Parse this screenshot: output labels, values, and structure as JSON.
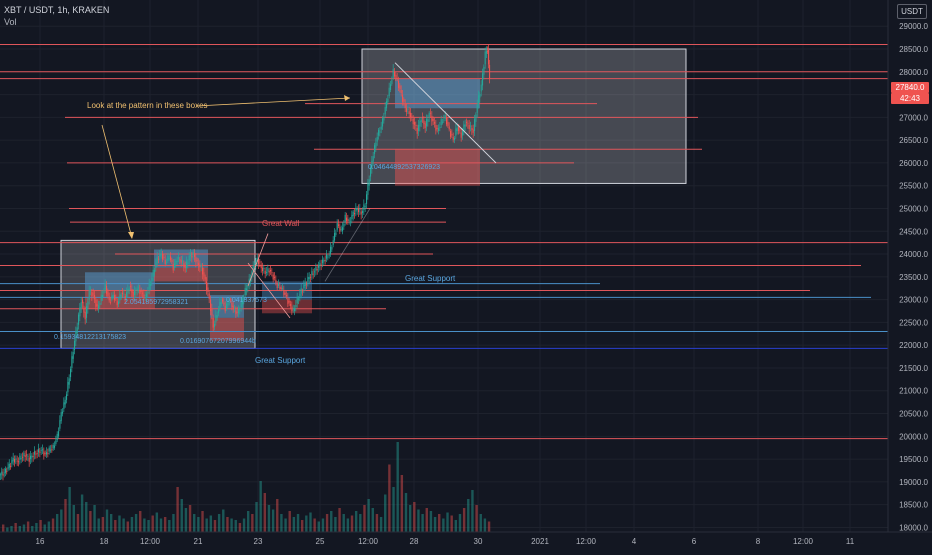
{
  "header": {
    "symbol": "XBT / USDT, 1h, KRAKEN",
    "volume_label": "Vol"
  },
  "currency_badge": "USDT",
  "price_tags": {
    "last_price": "27840.0",
    "countdown": "42:43"
  },
  "colors": {
    "background": "#131722",
    "bull": "#26a69a",
    "bear": "#ef5350",
    "hline_red": "#e0565b",
    "hline_blue": "#4a90c8",
    "box_fill": "#ffffff",
    "annotation_text": "#f0c070",
    "label_blue": "#5aa7e0",
    "label_red": "#e0565b"
  },
  "chart_data": {
    "type": "candlestick",
    "y_axis": {
      "ticks": [
        "29000.0",
        "28500.0",
        "28000.0",
        "27500.0",
        "27000.0",
        "26500.0",
        "26000.0",
        "25500.0",
        "25000.0",
        "24500.0",
        "24000.0",
        "23500.0",
        "23000.0",
        "22500.0",
        "22000.0",
        "21500.0",
        "21000.0",
        "20500.0",
        "20000.0",
        "19500.0",
        "19000.0",
        "18500.0",
        "18000.0"
      ],
      "range": [
        17900,
        29400
      ]
    },
    "x_axis": {
      "ticks": [
        "16",
        "18",
        "12:00",
        "21",
        "23",
        "25",
        "12:00",
        "28",
        "30",
        "2021",
        "12:00",
        "4",
        "6",
        "8",
        "12:00",
        "11"
      ]
    },
    "price_path": [
      [
        0,
        19150
      ],
      [
        5,
        19200
      ],
      [
        10,
        19350
      ],
      [
        14,
        19500
      ],
      [
        18,
        19450
      ],
      [
        22,
        19550
      ],
      [
        26,
        19600
      ],
      [
        30,
        19500
      ],
      [
        34,
        19600
      ],
      [
        38,
        19650
      ],
      [
        42,
        19700
      ],
      [
        46,
        19600
      ],
      [
        50,
        19700
      ],
      [
        54,
        19750
      ],
      [
        58,
        20000
      ],
      [
        62,
        20500
      ],
      [
        66,
        20800
      ],
      [
        70,
        21300
      ],
      [
        74,
        21900
      ],
      [
        78,
        22450
      ],
      [
        82,
        23000
      ],
      [
        86,
        22600
      ],
      [
        90,
        23200
      ],
      [
        94,
        23100
      ],
      [
        98,
        22800
      ],
      [
        102,
        23050
      ],
      [
        106,
        23300
      ],
      [
        110,
        22950
      ],
      [
        114,
        23100
      ],
      [
        118,
        22900
      ],
      [
        122,
        23150
      ],
      [
        126,
        23050
      ],
      [
        130,
        23300
      ],
      [
        134,
        23100
      ],
      [
        138,
        23250
      ],
      [
        142,
        23150
      ],
      [
        146,
        23050
      ],
      [
        150,
        23300
      ],
      [
        154,
        23600
      ],
      [
        158,
        23900
      ],
      [
        162,
        24000
      ],
      [
        166,
        23800
      ],
      [
        170,
        23950
      ],
      [
        174,
        23700
      ],
      [
        178,
        23900
      ],
      [
        182,
        23850
      ],
      [
        186,
        23700
      ],
      [
        190,
        23950
      ],
      [
        194,
        24000
      ],
      [
        198,
        23800
      ],
      [
        202,
        23700
      ],
      [
        206,
        23400
      ],
      [
        210,
        23000
      ],
      [
        214,
        22400
      ],
      [
        218,
        22700
      ],
      [
        222,
        23000
      ],
      [
        226,
        22800
      ],
      [
        230,
        23000
      ],
      [
        234,
        22800
      ],
      [
        238,
        22700
      ],
      [
        242,
        22900
      ],
      [
        246,
        23200
      ],
      [
        250,
        23400
      ],
      [
        254,
        23700
      ],
      [
        258,
        23900
      ],
      [
        262,
        23700
      ],
      [
        266,
        23600
      ],
      [
        270,
        23650
      ],
      [
        274,
        23500
      ],
      [
        278,
        23300
      ],
      [
        282,
        23250
      ],
      [
        286,
        23100
      ],
      [
        290,
        22900
      ],
      [
        294,
        22750
      ],
      [
        298,
        23000
      ],
      [
        302,
        23200
      ],
      [
        306,
        23350
      ],
      [
        310,
        23500
      ],
      [
        314,
        23600
      ],
      [
        318,
        23700
      ],
      [
        322,
        23800
      ],
      [
        326,
        23900
      ],
      [
        330,
        24000
      ],
      [
        334,
        24300
      ],
      [
        338,
        24650
      ],
      [
        342,
        24500
      ],
      [
        346,
        24800
      ],
      [
        350,
        24700
      ],
      [
        354,
        24900
      ],
      [
        358,
        25000
      ],
      [
        362,
        24900
      ],
      [
        366,
        25100
      ],
      [
        370,
        25700
      ],
      [
        374,
        26200
      ],
      [
        378,
        26600
      ],
      [
        382,
        26800
      ],
      [
        386,
        27200
      ],
      [
        390,
        27600
      ],
      [
        394,
        28000
      ],
      [
        398,
        27800
      ],
      [
        402,
        27500
      ],
      [
        406,
        27200
      ],
      [
        410,
        27100
      ],
      [
        414,
        26900
      ],
      [
        418,
        26700
      ],
      [
        422,
        27000
      ],
      [
        426,
        26800
      ],
      [
        430,
        27100
      ],
      [
        434,
        26900
      ],
      [
        438,
        26700
      ],
      [
        442,
        26900
      ],
      [
        446,
        27000
      ],
      [
        450,
        26700
      ],
      [
        454,
        26500
      ],
      [
        458,
        26800
      ],
      [
        462,
        26600
      ],
      [
        466,
        26900
      ],
      [
        470,
        26800
      ],
      [
        474,
        26700
      ],
      [
        478,
        27300
      ],
      [
        482,
        27700
      ],
      [
        486,
        28400
      ],
      [
        488,
        28500
      ],
      [
        490,
        27800
      ]
    ],
    "horizontal_lines": [
      {
        "price": 28600,
        "x1": 0,
        "x2": 932,
        "color": "red"
      },
      {
        "price": 28000,
        "x1": 0,
        "x2": 932,
        "color": "red"
      },
      {
        "price": 27850,
        "x1": 0,
        "x2": 932,
        "color": "red"
      },
      {
        "price": 27300,
        "x1": 305,
        "x2": 597,
        "color": "red"
      },
      {
        "price": 27000,
        "x1": 65,
        "x2": 698,
        "color": "red"
      },
      {
        "price": 26300,
        "x1": 314,
        "x2": 702,
        "color": "red"
      },
      {
        "price": 26000,
        "x1": 67,
        "x2": 574,
        "color": "red"
      },
      {
        "price": 25000,
        "x1": 69,
        "x2": 446,
        "color": "red"
      },
      {
        "price": 24700,
        "x1": 70,
        "x2": 446,
        "color": "red"
      },
      {
        "price": 24250,
        "x1": 0,
        "x2": 932,
        "color": "red"
      },
      {
        "price": 24000,
        "x1": 115,
        "x2": 433,
        "color": "red"
      },
      {
        "price": 23750,
        "x1": 0,
        "x2": 861,
        "color": "red"
      },
      {
        "price": 23350,
        "x1": 0,
        "x2": 600,
        "color": "blue"
      },
      {
        "price": 23200,
        "x1": 0,
        "x2": 810,
        "color": "red"
      },
      {
        "price": 23050,
        "x1": 0,
        "x2": 871,
        "color": "blue"
      },
      {
        "price": 22800,
        "x1": 0,
        "x2": 386,
        "color": "red"
      },
      {
        "price": 22300,
        "x1": 0,
        "x2": 932,
        "color": "blue"
      },
      {
        "price": 21930,
        "x1": 0,
        "x2": 932,
        "color": "navy"
      },
      {
        "price": 19950,
        "x1": 0,
        "x2": 932,
        "color": "red"
      }
    ],
    "volume": [
      5,
      3,
      4,
      6,
      4,
      5,
      7,
      4,
      6,
      8,
      5,
      7,
      9,
      12,
      15,
      22,
      30,
      18,
      12,
      25,
      20,
      14,
      18,
      9,
      10,
      15,
      12,
      8,
      11,
      9,
      7,
      10,
      12,
      14,
      9,
      8,
      11,
      13,
      9,
      10,
      8,
      12,
      30,
      22,
      16,
      18,
      12,
      10,
      14,
      9,
      11,
      8,
      12,
      15,
      10,
      9,
      8,
      6,
      9,
      14,
      12,
      20,
      34,
      26,
      18,
      15,
      22,
      12,
      9,
      14,
      10,
      12,
      8,
      11,
      13,
      9,
      7,
      9,
      12,
      14,
      10,
      16,
      12,
      9,
      11,
      14,
      12,
      18,
      22,
      16,
      12,
      10,
      25,
      45,
      30,
      60,
      38,
      26,
      18,
      20,
      15,
      12,
      16,
      14,
      10,
      12,
      9,
      13,
      11,
      8,
      12,
      16,
      22,
      28,
      18,
      12,
      9,
      7
    ],
    "annotations": {
      "pattern_note": "Look at the pattern in these boxes",
      "great_wall": "Great Wall",
      "great_support_1": "Great Support",
      "great_support_2": "Great Support",
      "fib_1": "0.15934812213175823",
      "fib_2": "0.01690767207996944b",
      "fib_3": "0.04644892537326923",
      "fib_4": "2.054185972958321",
      "fib_5": "0.041837573"
    }
  }
}
